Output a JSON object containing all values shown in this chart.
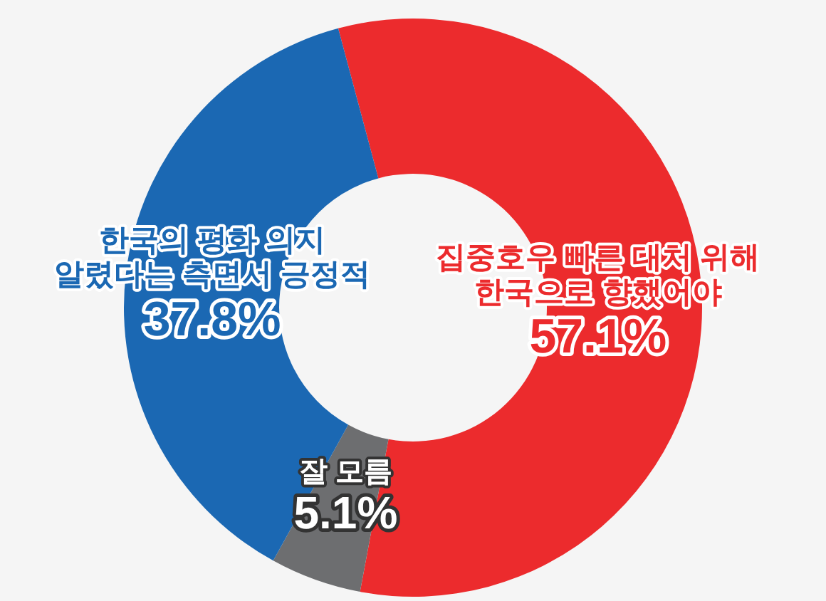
{
  "chart_data": {
    "type": "donut",
    "categories": [
      "집중호우 빠른 대처 위해\n한국으로 향했어야",
      "잘 모름",
      "한국의 평화 의지\n알렸다는 측면서 긍정적"
    ],
    "values": [
      57.1,
      5.1,
      37.8
    ],
    "colors": [
      "#ec2b2d",
      "#6d6e70",
      "#1b68b3"
    ],
    "value_labels": [
      "57.1%",
      "5.1%",
      "37.8%"
    ]
  }
}
